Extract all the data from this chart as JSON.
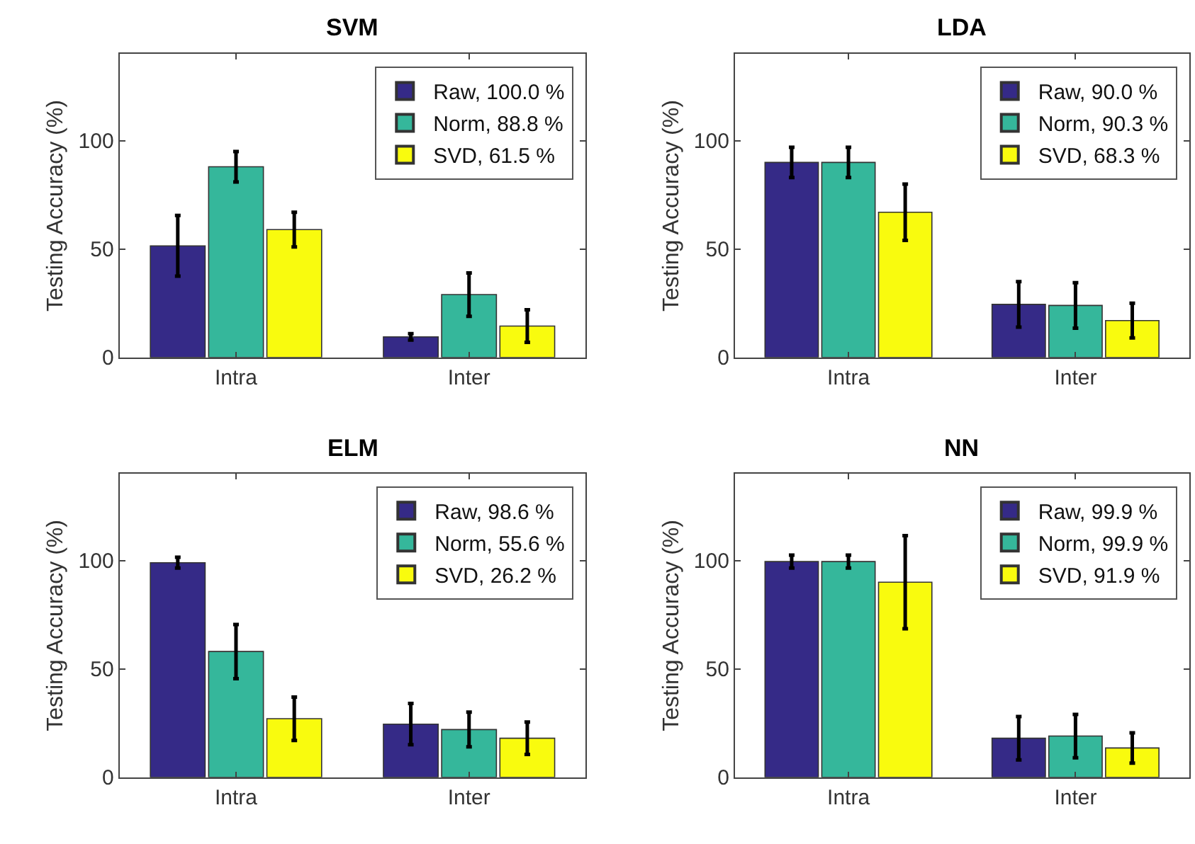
{
  "chart_data": [
    {
      "type": "bar",
      "title": "SVM",
      "ylabel": "Testing Accuracy (%)",
      "categories": [
        "Intra",
        "Inter"
      ],
      "ylim": [
        0,
        140
      ],
      "yticks": [
        0,
        50,
        100
      ],
      "legend": "top right",
      "series": [
        {
          "name": "Raw, 100.0 %",
          "color": "#352a87",
          "values": [
            51.5,
            9.5
          ],
          "errors": [
            14,
            1.5
          ]
        },
        {
          "name": "Norm, 88.8 %",
          "color": "#35b79b",
          "values": [
            88,
            29
          ],
          "errors": [
            7,
            10
          ]
        },
        {
          "name": "SVD, 61.5 %",
          "color": "#f9fb0e",
          "values": [
            59,
            14.5
          ],
          "errors": [
            8,
            7.5
          ]
        }
      ]
    },
    {
      "type": "bar",
      "title": "LDA",
      "ylabel": "Testing Accuracy (%)",
      "categories": [
        "Intra",
        "Inter"
      ],
      "ylim": [
        0,
        140
      ],
      "yticks": [
        0,
        50,
        100
      ],
      "legend": "top right",
      "series": [
        {
          "name": "Raw, 90.0 %",
          "color": "#352a87",
          "values": [
            90,
            24.5
          ],
          "errors": [
            7,
            10.5
          ]
        },
        {
          "name": "Norm, 90.3 %",
          "color": "#35b79b",
          "values": [
            90,
            24
          ],
          "errors": [
            7,
            10.5
          ]
        },
        {
          "name": "SVD, 68.3 %",
          "color": "#f9fb0e",
          "values": [
            67,
            17
          ],
          "errors": [
            13,
            8
          ]
        }
      ]
    },
    {
      "type": "bar",
      "title": "ELM",
      "ylabel": "Testing Accuracy (%)",
      "categories": [
        "Intra",
        "Inter"
      ],
      "ylim": [
        0,
        140
      ],
      "yticks": [
        0,
        50,
        100
      ],
      "legend": "top right",
      "series": [
        {
          "name": "Raw, 98.6 %",
          "color": "#352a87",
          "values": [
            99,
            24.5
          ],
          "errors": [
            2.5,
            9.5
          ]
        },
        {
          "name": "Norm, 55.6 %",
          "color": "#35b79b",
          "values": [
            58,
            22
          ],
          "errors": [
            12.5,
            8
          ]
        },
        {
          "name": "SVD, 26.2 %",
          "color": "#f9fb0e",
          "values": [
            27,
            18
          ],
          "errors": [
            10,
            7.5
          ]
        }
      ]
    },
    {
      "type": "bar",
      "title": "NN",
      "ylabel": "Testing Accuracy (%)",
      "categories": [
        "Intra",
        "Inter"
      ],
      "ylim": [
        0,
        140
      ],
      "yticks": [
        0,
        50,
        100
      ],
      "legend": "top right",
      "series": [
        {
          "name": "Raw, 99.9 %",
          "color": "#352a87",
          "values": [
            99.5,
            18
          ],
          "errors": [
            3,
            10
          ]
        },
        {
          "name": "Norm, 99.9 %",
          "color": "#35b79b",
          "values": [
            99.5,
            19
          ],
          "errors": [
            3,
            10
          ]
        },
        {
          "name": "SVD, 91.9 %",
          "color": "#f9fb0e",
          "values": [
            90,
            13.5
          ],
          "errors": [
            21.5,
            7
          ]
        }
      ]
    }
  ]
}
